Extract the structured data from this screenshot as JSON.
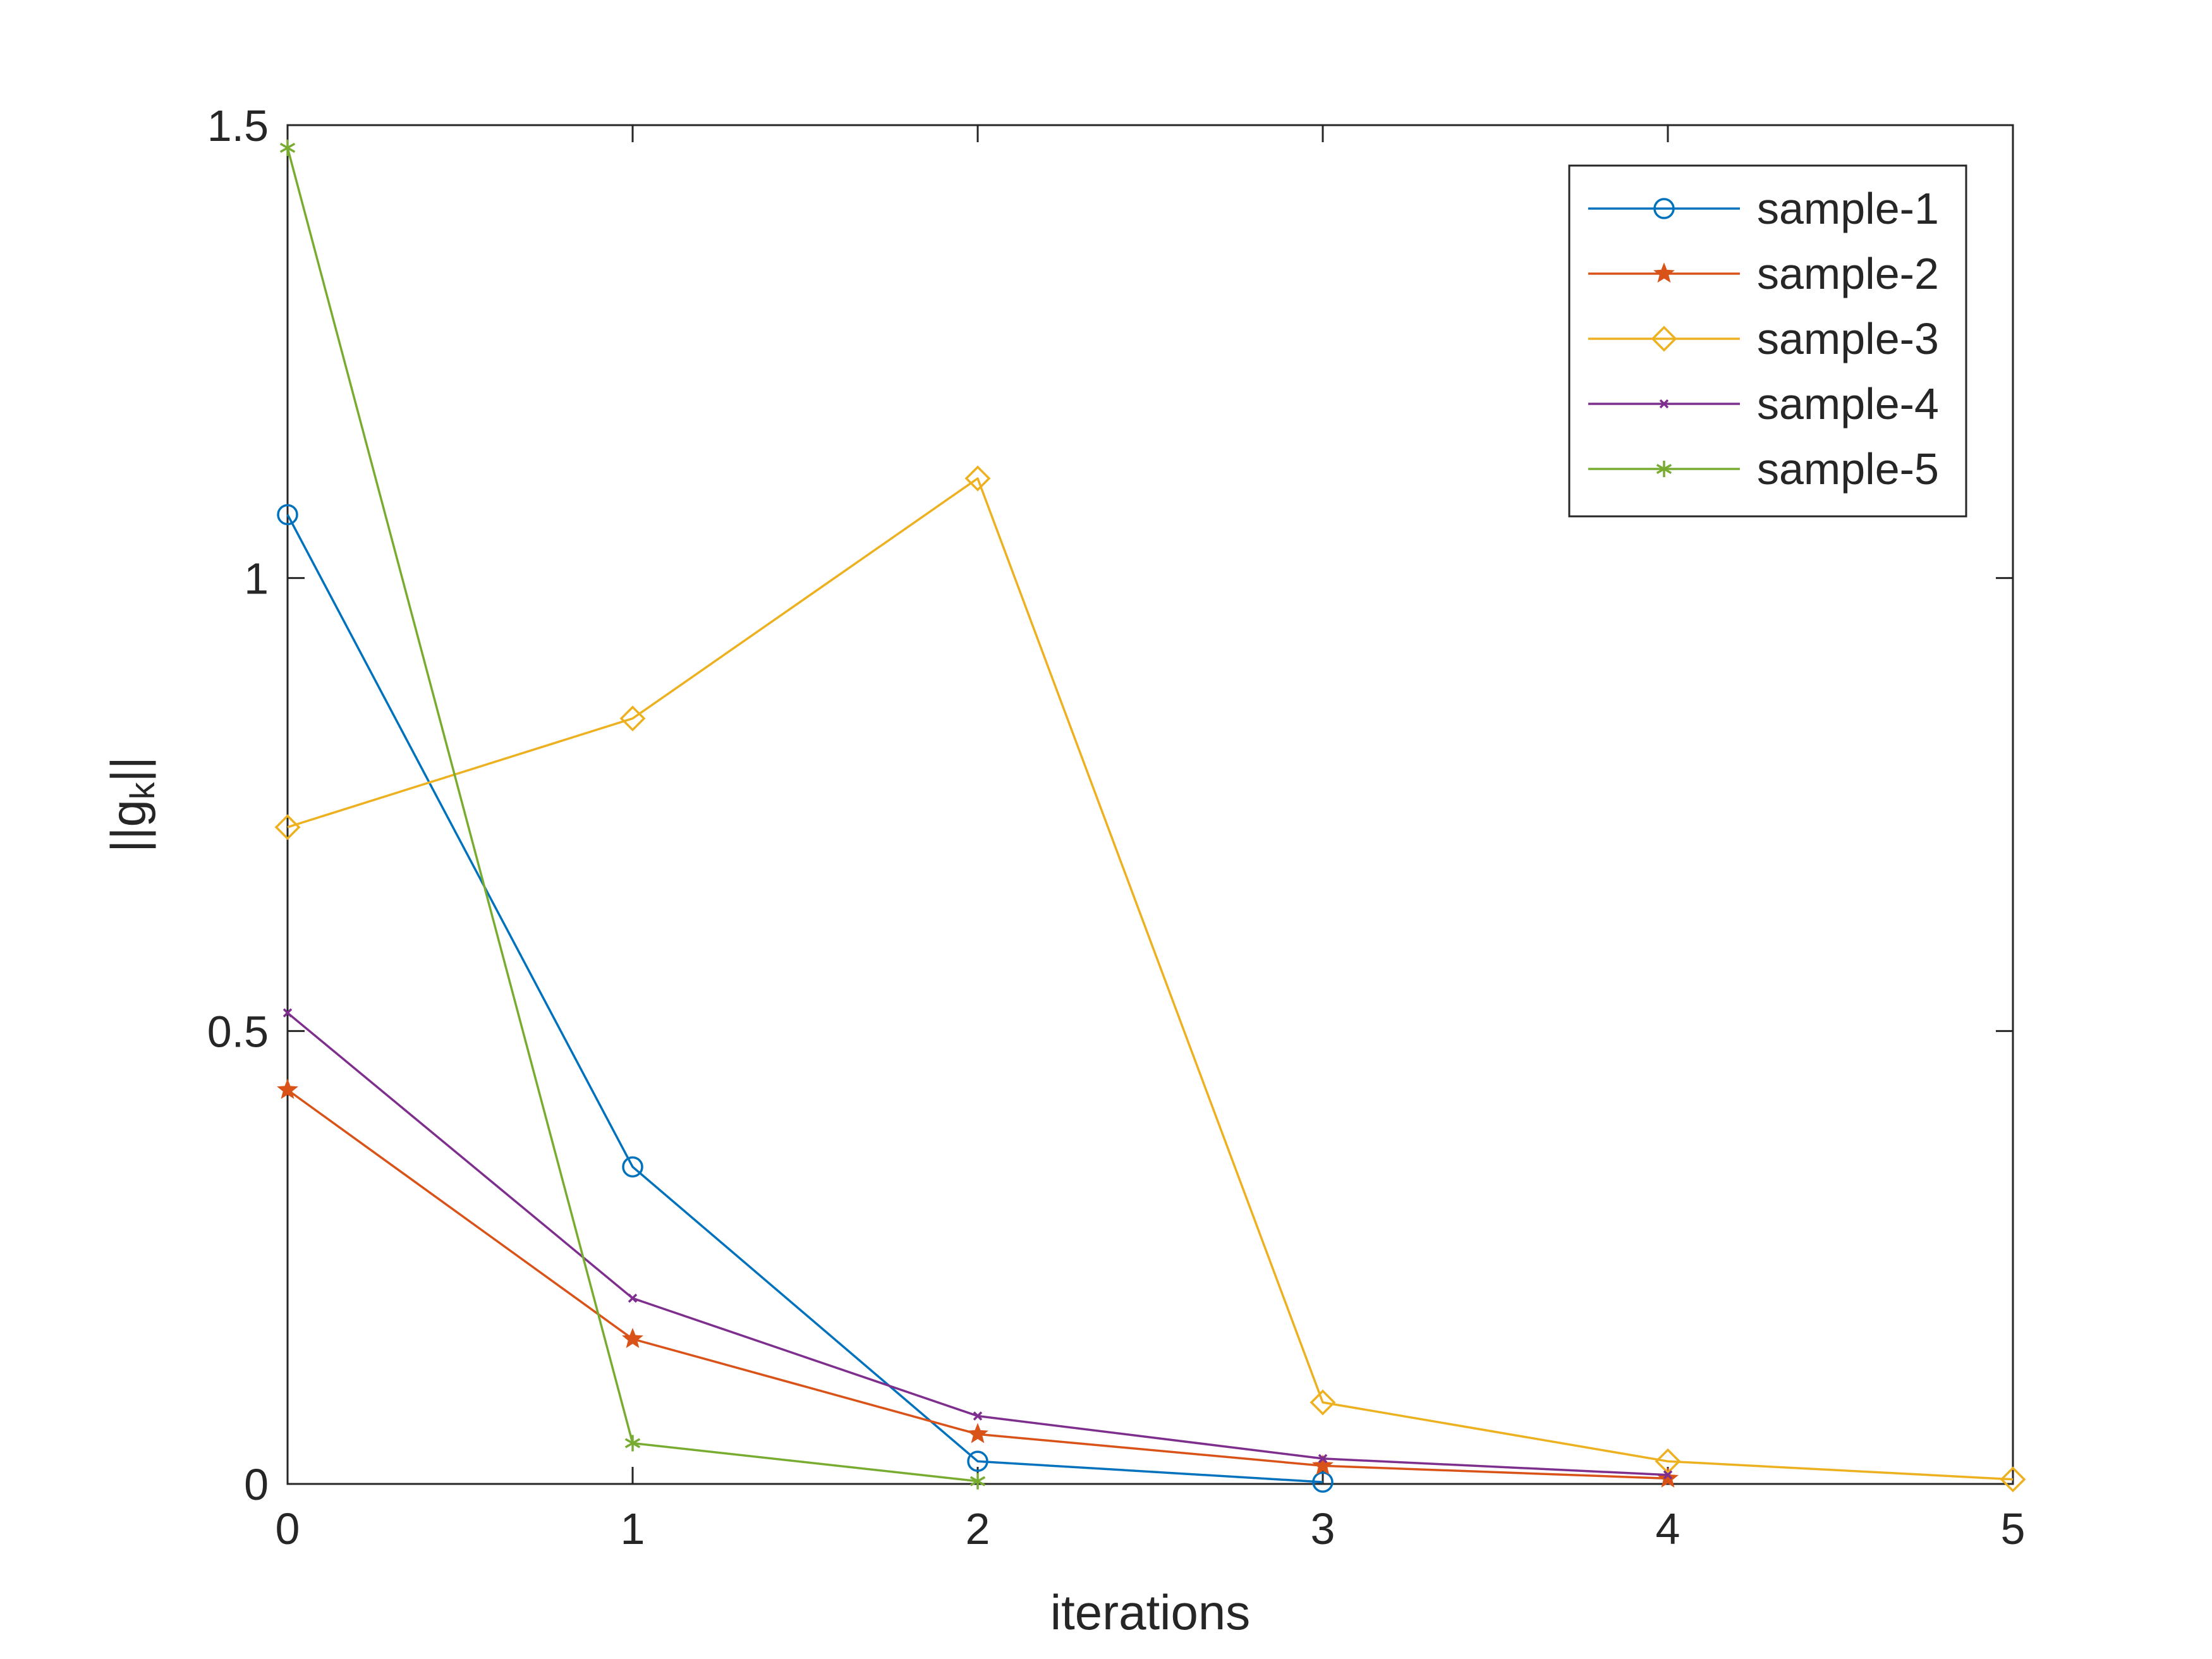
{
  "chart_data": {
    "type": "line",
    "title": "",
    "xlabel": "iterations",
    "ylabel_main": "||g",
    "ylabel_sub": "k",
    "ylabel_end": "||",
    "xlim": [
      0,
      5
    ],
    "ylim": [
      0,
      1.5
    ],
    "xticks": [
      0,
      1,
      2,
      3,
      4,
      5
    ],
    "xtick_labels": [
      "0",
      "1",
      "2",
      "3",
      "4",
      "5"
    ],
    "yticks": [
      0,
      0.5,
      1,
      1.5
    ],
    "ytick_labels": [
      "0",
      "0.5",
      "1",
      "1.5"
    ],
    "grid": false,
    "legend_position": "top-right",
    "series": [
      {
        "name": "sample-1",
        "color": "#0072BD",
        "marker": "circle",
        "x": [
          0,
          1,
          2,
          3
        ],
        "y": [
          1.07,
          0.35,
          0.025,
          0.002
        ]
      },
      {
        "name": "sample-2",
        "color": "#D95319",
        "marker": "pentagram",
        "x": [
          0,
          1,
          2,
          3,
          4
        ],
        "y": [
          0.435,
          0.16,
          0.055,
          0.02,
          0.006
        ]
      },
      {
        "name": "sample-3",
        "color": "#EDB120",
        "marker": "diamond",
        "x": [
          0,
          1,
          2,
          3,
          4,
          5
        ],
        "y": [
          0.725,
          0.845,
          1.11,
          0.09,
          0.025,
          0.005
        ]
      },
      {
        "name": "sample-4",
        "color": "#7E2F8E",
        "marker": "x",
        "x": [
          0,
          1,
          2,
          3,
          4
        ],
        "y": [
          0.52,
          0.205,
          0.075,
          0.028,
          0.01
        ]
      },
      {
        "name": "sample-5",
        "color": "#77AC30",
        "marker": "asterisk",
        "x": [
          0,
          1,
          2
        ],
        "y": [
          1.475,
          0.045,
          0.003
        ]
      }
    ]
  }
}
